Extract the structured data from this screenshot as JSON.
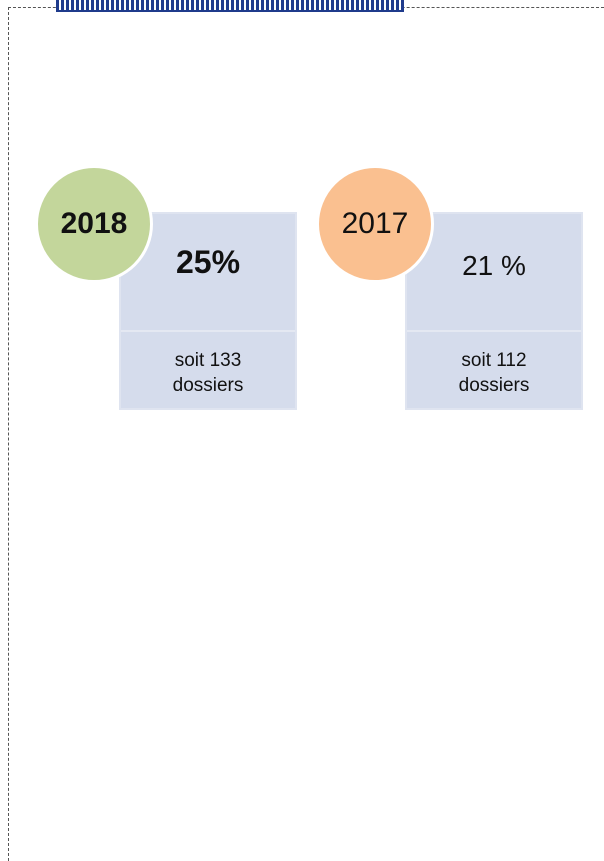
{
  "cards": [
    {
      "year": "2018",
      "value": "25%",
      "detail": [
        "soit 133",
        "dossiers"
      ]
    },
    {
      "year": "2017",
      "value": "21 %",
      "detail": [
        "soit 112",
        "dossiers"
      ]
    }
  ]
}
